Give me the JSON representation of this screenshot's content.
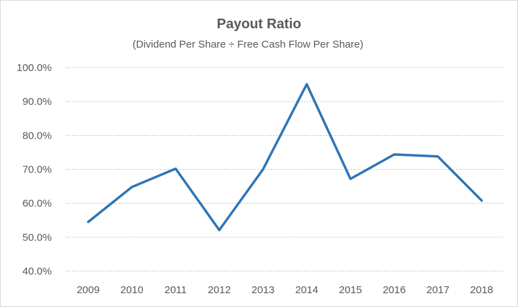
{
  "chart_data": {
    "type": "line",
    "title": "Payout Ratio",
    "subtitle": "(Dividend Per Share ÷ Free Cash Flow Per Share)",
    "xlabel": "",
    "ylabel": "",
    "categories": [
      "2009",
      "2010",
      "2011",
      "2012",
      "2013",
      "2014",
      "2015",
      "2016",
      "2017",
      "2018"
    ],
    "series": [
      {
        "values": [
          54.5,
          64.8,
          70.2,
          52.1,
          70.0,
          95.1,
          67.2,
          74.4,
          73.8,
          60.8
        ]
      }
    ],
    "ylim": [
      40,
      100
    ],
    "yticks": [
      "40.0%",
      "50.0%",
      "60.0%",
      "70.0%",
      "80.0%",
      "90.0%",
      "100.0%"
    ],
    "ytick_values": [
      40,
      50,
      60,
      70,
      80,
      90,
      100
    ],
    "grid": "horizontal",
    "line_color": "#2e75b6"
  }
}
